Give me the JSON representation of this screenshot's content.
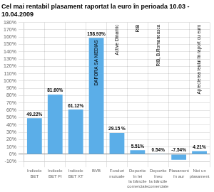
{
  "chart_data": {
    "type": "bar",
    "title": "Cel mai rentabil plasament raportat la euro în perioada 10.03 - 10.04.2009",
    "categories": [
      "Indicele\nBET",
      "Indicele\nBET FI",
      "Indicele\nBET XT",
      "BVB",
      "Fonduri\nmutuale",
      "Depozite\nîn lei\nla băncile\ncomerciale",
      "Depozite\nîneu\nla băncile\ncomerciale",
      "Plasament\nîn aur",
      "Nici un\nplasament"
    ],
    "values": [
      49.22,
      81.6,
      61.12,
      158.93,
      29.15,
      5.51,
      0.54,
      -7.54,
      4.21
    ],
    "value_labels": [
      "49.22%",
      "81.60%",
      "61.12%",
      "158.93%",
      "29.15 %",
      "5.51%",
      "0.54%",
      "-7.54%",
      "4.21%"
    ],
    "data_labels": true,
    "color": "#5baee8",
    "ylim": [
      -10,
      180
    ],
    "yticks": [
      {
        "value": -10,
        "label": "-10%"
      },
      {
        "value": 0,
        "label": "0%"
      },
      {
        "value": 10,
        "label": "10%"
      },
      {
        "value": 20,
        "label": "20%"
      },
      {
        "value": 30,
        "label": "30%"
      },
      {
        "value": 40,
        "label": "40%"
      },
      {
        "value": 50,
        "label": "50%"
      },
      {
        "value": 60,
        "label": "60%"
      },
      {
        "value": 70,
        "label": "70%"
      },
      {
        "value": 80,
        "label": "80%"
      },
      {
        "value": 90,
        "label": "90%"
      },
      {
        "value": 100,
        "label": "100%"
      },
      {
        "value": 110,
        "label": "110%"
      },
      {
        "value": 120,
        "label": "120%"
      },
      {
        "value": 130,
        "label": "130%"
      },
      {
        "value": 140,
        "label": "140%"
      },
      {
        "value": 150,
        "label": "150%"
      },
      {
        "value": 160,
        "label": "160%"
      },
      {
        "value": 170,
        "label": "170%"
      },
      {
        "value": 180,
        "label": "180%"
      }
    ],
    "grid": true,
    "annotations": [
      {
        "category": "BVB",
        "text": "DAFORA SA MEDIAS"
      },
      {
        "category": "Fonduri\nmutuale",
        "text": "Active Dinamic"
      },
      {
        "category": "Depozite\nîn lei\nla băncile\ncomerciale",
        "text": "RIB"
      },
      {
        "category": "Depozite\nîneu\nla băncile\ncomerciale",
        "text": "RIB, B.Romaneasca"
      },
      {
        "category": "Nici un\nplasament",
        "text": "Aprecierea leului în raport cu euro"
      }
    ]
  }
}
